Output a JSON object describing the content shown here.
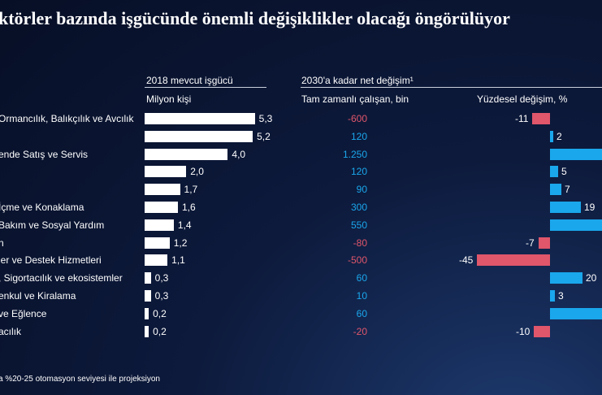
{
  "title": "ktörler bazında işgücünde önemli değişiklikler olacağı öngörülüyor",
  "headers": {
    "workforce_group": "2018 mevcut işgücü",
    "workforce_unit": "Milyon kişi",
    "change_group": "2030'a kadar net değişim¹",
    "net_unit": "Tam zamanlı çalışan, bin",
    "pct_unit": "Yüzdesel değişim, %"
  },
  "footnote": "a %20-25 otomasyon seviyesi ile projeksiyon",
  "colors": {
    "positive": "#1aa7ec",
    "negative": "#e0566b",
    "bar": "#ffffff"
  },
  "chart_data": {
    "type": "bar",
    "categories": [
      " Ormancılık, Balıkçılık ve Avcılık",
      "",
      "ende Satış ve Servis",
      "",
      "",
      "İçme ve Konaklama",
      " Bakım ve Sosyal Yardım",
      "n",
      "ler ve Destek Hizmetleri",
      ", Sigortacılık ve ekosistemler",
      "enkul ve Kiralama",
      "ve Eğlence",
      "acılık"
    ],
    "series": [
      {
        "name": "2018 mevcut işgücü",
        "values": [
          5.3,
          5.2,
          4.0,
          2.0,
          1.7,
          1.6,
          1.4,
          1.2,
          1.1,
          0.3,
          0.3,
          0.2,
          0.2
        ],
        "labels": [
          "5,3",
          "5,2",
          "4,0",
          "2,0",
          "1,7",
          "1,6",
          "1,4",
          "1,2",
          "1,1",
          "0,3",
          "0,3",
          "0,2",
          "0,2"
        ]
      },
      {
        "name": "Tam zamanlı çalışan, bin",
        "values": [
          -600,
          120,
          1250,
          120,
          90,
          300,
          550,
          -80,
          -500,
          60,
          10,
          60,
          -20
        ],
        "labels": [
          "-600",
          "120",
          "1.250",
          "120",
          "90",
          "300",
          "550",
          "-80",
          "-500",
          "60",
          "10",
          "60",
          "-20"
        ]
      },
      {
        "name": "Yüzdesel değişim, %",
        "values": [
          -11,
          2,
          null,
          5,
          7,
          19,
          null,
          -7,
          -45,
          20,
          3,
          null,
          -10
        ],
        "labels": [
          "-11",
          "2",
          "",
          "5",
          "7",
          "19",
          "",
          "-7",
          "-45",
          "20",
          "3",
          "",
          "-10"
        ]
      }
    ],
    "pct_axis_range": [
      -45,
      20
    ]
  }
}
